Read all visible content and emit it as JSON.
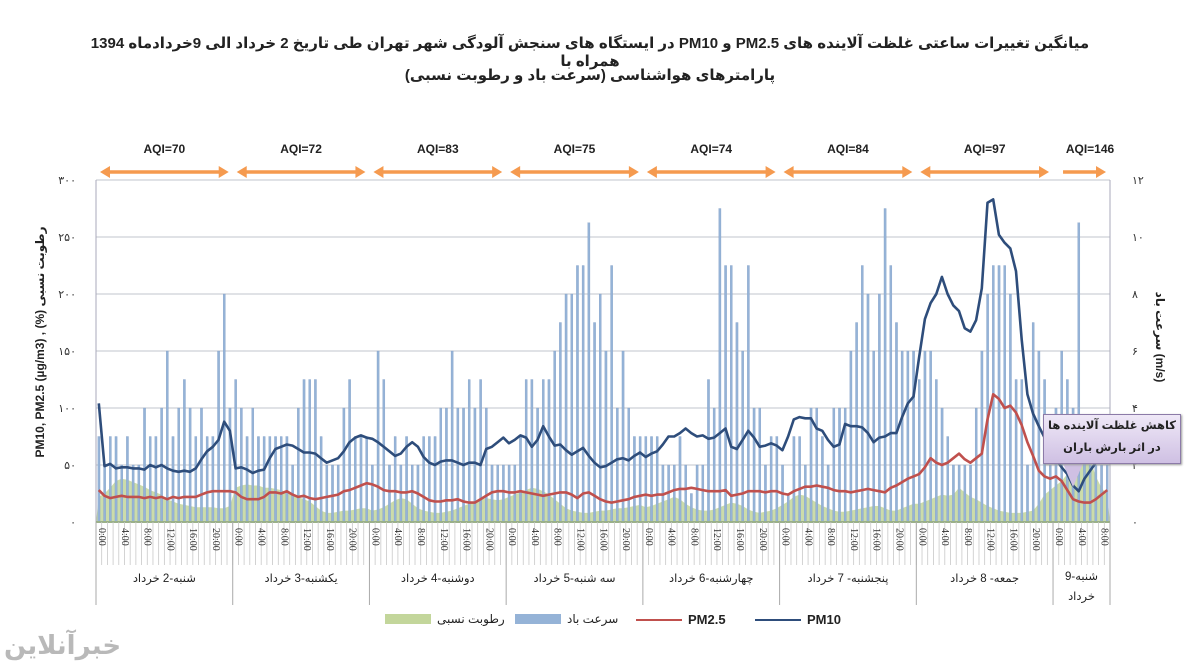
{
  "title": {
    "line1": "میانگین تغییرات ساعتی غلظت آلاینده های PM2.5 و PM10  در ایستگاه های سنجش آلودگی شهر تهران طی تاریخ 2 خرداد الی 9خردادماه 1394 همراه با",
    "line2": "پارامترهای هواشناسی (سرعت باد و رطوبت نسبی)"
  },
  "callout": {
    "line1": "کاهش غلظت آلاینده ها",
    "line2": "در اثر بارش باران"
  },
  "logo": "خبرآنلاین",
  "colors": {
    "pm10": "#2e4d7b",
    "pm25": "#c0504d",
    "wind": "#95b3d7",
    "humidity": "#c3d69b",
    "aqi_arrow": "#f59a4f",
    "grid": "#c0c4cc"
  },
  "chart_data": {
    "type": "line+bar+area",
    "ylabel_left": "PM10, PM2.5 (µg/m3) , (%) رطوبت نسبی",
    "ylabel_right": "سرعت باد (m/s)",
    "ylim_left": [
      0,
      300
    ],
    "ylim_right": [
      0,
      12
    ],
    "yticks_left": [
      "۰",
      "۵۰",
      "۱۰۰",
      "۱۵۰",
      "۲۰۰",
      "۲۵۰",
      "۳۰۰"
    ],
    "yticks_right": [
      "۰",
      "۲",
      "۴",
      "۶",
      "۸",
      "۱۰",
      "۱۲"
    ],
    "grid": true,
    "hour_ticks": [
      "0:00",
      "4:00",
      "8:00",
      "12:00",
      "16:00",
      "20:00"
    ],
    "days": [
      "شنبه-2 خرداد",
      "یکشنبه-3 خرداد",
      "دوشنبه-4 خرداد",
      "سه شنبه-5 خرداد",
      "چهارشنبه-6 خرداد",
      "پنجشنبه- 7 خرداد",
      "جمعه- 8 خرداد",
      "شنبه-9 خرداد"
    ],
    "aqi": [
      "AQI=70",
      "AQI=72",
      "AQI=83",
      "AQI=75",
      "AQI=74",
      "AQI=84",
      "AQI=97",
      "AQI=146"
    ],
    "legend_placement": "bottom",
    "series": [
      {
        "name": "PM10",
        "kind": "line",
        "axis": "left",
        "values": [
          104,
          49,
          51,
          47,
          48,
          48,
          47,
          47,
          46,
          50,
          48,
          50,
          47,
          45,
          44,
          45,
          44,
          47,
          55,
          62,
          66,
          72,
          88,
          80,
          47,
          48,
          46,
          43,
          45,
          46,
          56,
          64,
          66,
          68,
          67,
          64,
          61,
          61,
          60,
          56,
          52,
          54,
          56,
          62,
          70,
          74,
          76,
          74,
          73,
          70,
          66,
          62,
          58,
          60,
          66,
          70,
          66,
          57,
          52,
          50,
          53,
          54,
          54,
          52,
          50,
          52,
          52,
          50,
          64,
          66,
          70,
          74,
          69,
          72,
          76,
          74,
          66,
          72,
          84,
          75,
          67,
          68,
          63,
          59,
          62,
          65,
          58,
          52,
          48,
          49,
          52,
          55,
          56,
          54,
          58,
          61,
          57,
          60,
          62,
          68,
          75,
          75,
          78,
          82,
          78,
          75,
          76,
          73,
          74,
          78,
          82,
          66,
          64,
          72,
          80,
          74,
          66,
          67,
          69,
          67,
          63,
          75,
          90,
          92,
          91,
          91,
          82,
          80,
          72,
          66,
          68,
          86,
          84,
          84,
          83,
          78,
          70,
          74,
          75,
          78,
          78,
          92,
          104,
          110,
          145,
          178,
          192,
          200,
          215,
          200,
          190,
          185,
          170,
          167,
          177,
          205,
          280,
          283,
          252,
          245,
          240,
          220,
          160,
          112,
          95,
          84,
          74,
          62,
          55,
          48,
          42,
          32,
          27,
          38,
          45,
          52
        ]
      },
      {
        "name": "PM2.5",
        "kind": "line",
        "axis": "left",
        "values": [
          28,
          23,
          21,
          22,
          23,
          22,
          22,
          22,
          21,
          22,
          21,
          22,
          20,
          22,
          21,
          22,
          22,
          22,
          24,
          26,
          27,
          27,
          27,
          27,
          26,
          22,
          20,
          20,
          20,
          22,
          26,
          26,
          25,
          27,
          24,
          22,
          23,
          21,
          20,
          21,
          22,
          23,
          24,
          27,
          28,
          30,
          32,
          34,
          33,
          31,
          28,
          27,
          27,
          26,
          26,
          27,
          25,
          22,
          19,
          18,
          18,
          19,
          19,
          20,
          18,
          17,
          17,
          20,
          23,
          26,
          27,
          27,
          26,
          26,
          27,
          26,
          25,
          24,
          23,
          24,
          25,
          26,
          26,
          24,
          21,
          25,
          26,
          23,
          20,
          18,
          17,
          18,
          19,
          20,
          22,
          23,
          24,
          23,
          24,
          24,
          26,
          28,
          29,
          29,
          30,
          29,
          28,
          27,
          27,
          27,
          28,
          23,
          24,
          25,
          27,
          27,
          27,
          26,
          27,
          27,
          25,
          24,
          27,
          29,
          31,
          31,
          32,
          31,
          30,
          28,
          27,
          27,
          26,
          27,
          28,
          29,
          28,
          27,
          26,
          30,
          32,
          35,
          38,
          40,
          42,
          48,
          56,
          52,
          50,
          52,
          56,
          60,
          55,
          52,
          56,
          60,
          90,
          112,
          108,
          100,
          102,
          96,
          85,
          70,
          58,
          45,
          40,
          38,
          40,
          36,
          28,
          20,
          18,
          17,
          17,
          20,
          24,
          28
        ]
      },
      {
        "name": "سرعت باد",
        "kind": "bar",
        "axis": "right",
        "values": [
          3,
          2,
          3,
          3,
          2,
          3,
          2,
          2,
          4,
          3,
          3,
          4,
          6,
          3,
          4,
          5,
          4,
          3,
          4,
          3,
          3,
          6,
          8,
          4,
          5,
          4,
          3,
          4,
          3,
          3,
          3,
          3,
          3,
          3,
          2,
          4,
          5,
          5,
          5,
          3,
          2,
          2,
          2,
          4,
          5,
          3,
          3,
          3,
          2,
          6,
          5,
          2,
          3,
          2,
          3,
          2,
          2,
          3,
          3,
          3,
          4,
          4,
          6,
          4,
          4,
          5,
          4,
          5,
          4,
          2,
          2,
          2,
          2,
          2,
          3,
          5,
          5,
          4,
          5,
          5,
          6,
          7,
          8,
          8,
          9,
          9,
          10.5,
          7,
          8,
          6,
          9,
          4,
          6,
          4,
          3,
          3,
          3,
          3,
          3,
          2,
          2,
          2,
          3,
          2,
          1,
          2,
          2,
          5,
          4,
          11,
          9,
          9,
          7,
          6,
          9,
          4,
          4,
          2,
          3,
          3,
          2,
          1,
          3,
          3,
          2,
          4,
          4,
          3,
          2,
          4,
          4,
          4,
          6,
          7,
          9,
          8,
          6,
          8,
          11,
          9,
          7,
          6,
          6,
          6,
          5,
          6,
          6,
          5,
          4,
          3,
          2,
          2,
          2,
          2,
          4,
          6,
          8,
          9,
          9,
          9,
          8,
          5,
          5,
          2,
          7,
          6,
          5,
          2,
          4,
          6,
          5,
          4,
          10.5,
          3,
          2,
          2,
          2,
          2
        ]
      },
      {
        "name": "رطوبت نسبی",
        "kind": "area",
        "axis": "left",
        "values": [
          22,
          25,
          30,
          36,
          38,
          37,
          35,
          33,
          31,
          28,
          26,
          24,
          20,
          18,
          16,
          15,
          14,
          13,
          13,
          13,
          13,
          12,
          12,
          14,
          30,
          32,
          33,
          32,
          32,
          30,
          30,
          29,
          28,
          26,
          24,
          22,
          20,
          18,
          14,
          10,
          8,
          8,
          9,
          10,
          10,
          11,
          12,
          12,
          10,
          11,
          13,
          16,
          19,
          21,
          20,
          16,
          12,
          10,
          9,
          8,
          8,
          9,
          10,
          12,
          14,
          16,
          18,
          20,
          21,
          20,
          19,
          20,
          22,
          24,
          26,
          28,
          30,
          29,
          27,
          24,
          20,
          16,
          12,
          10,
          9,
          8,
          8,
          9,
          10,
          10,
          11,
          12,
          12,
          13,
          14,
          15,
          13,
          14,
          16,
          18,
          20,
          22,
          20,
          16,
          13,
          11,
          10,
          10,
          11,
          13,
          15,
          17,
          16,
          14,
          11,
          9,
          8,
          9,
          10,
          12,
          15,
          18,
          22,
          24,
          23,
          20,
          17,
          14,
          12,
          10,
          9,
          9,
          10,
          11,
          12,
          13,
          14,
          14,
          12,
          10,
          10,
          12,
          14,
          16,
          16,
          18,
          20,
          22,
          24,
          23,
          24,
          30,
          26,
          22,
          20,
          17,
          14,
          12,
          10,
          9,
          8,
          8,
          8,
          9,
          10,
          16,
          24,
          28,
          32,
          36,
          42,
          46,
          48,
          52,
          55,
          40,
          30,
          24
        ]
      }
    ]
  }
}
